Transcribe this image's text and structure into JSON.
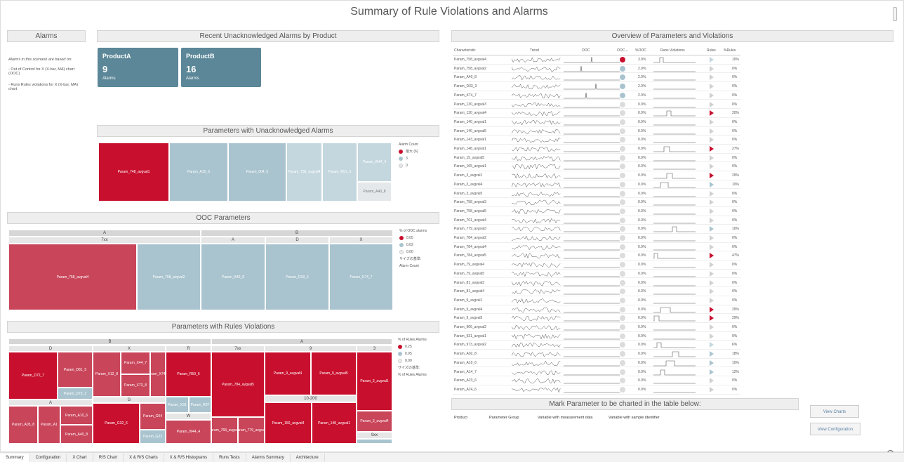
{
  "title": "Summary of Rule Violations and Alarms",
  "alarms": {
    "header": "Alarms",
    "intro": "Alarms in this scenario are based on:",
    "item1": "- Out of Control for X (X-bar, MA) chart (OOC)",
    "item2": "- Runs Rules violations for X (X-bar, MA) chart"
  },
  "recent": {
    "header": "Recent Unacknowledged Alarms by Product",
    "cards": [
      {
        "name": "ProductA",
        "count": "9",
        "label": "Alarms"
      },
      {
        "name": "ProductB",
        "count": "16",
        "label": "Alarms"
      }
    ]
  },
  "unack": {
    "header": "Parameters with Unacknowledged Alarms",
    "cells": [
      "Param_748_avgval1",
      "Param_A15_6",
      "Param_004_5",
      "Param_758_avgval4",
      "Param_R51_5",
      "Param_W44_4",
      "Param_A40_8"
    ],
    "legend_title": "Alarm Count",
    "legend": [
      "最大 (6)",
      "3",
      "0"
    ]
  },
  "ooc": {
    "header": "OOC Parameters",
    "groups": [
      "A",
      "B"
    ],
    "sub": [
      "7xx",
      "A",
      "D",
      "X"
    ],
    "cells": [
      "Param_758_avgval4",
      "Param_758_avgval2",
      "Param_A40_8",
      "Param_D33_3",
      "Param_K74_7"
    ],
    "legend_title": "% of OOC alarms",
    "legend": [
      "0.05",
      "0.02",
      "0.00"
    ],
    "size_label": "サイズの基準:",
    "size_value": "Alarm Count"
  },
  "rules": {
    "header": "Parameters with Rules Violations",
    "groups": [
      "B",
      "A"
    ],
    "sub": [
      "D",
      "X",
      "R",
      "A",
      "G",
      "W",
      "7xx",
      "9",
      "3",
      "10-200",
      "9xx"
    ],
    "cells": [
      "Param_D72_7",
      "Param_D81_5",
      "Param_D73_2",
      "Param_X12_8",
      "Param_X44_7",
      "Param_X73_8",
      "Param_X74_2",
      "Param_R59_6",
      "Param_A05_8",
      "Param_A1",
      "Param_A10_6",
      "Param_A40_8",
      "Param_G32_6",
      "Param_G04",
      "Param_G32",
      "Param_X31",
      "Param_R07",
      "Param_W44_4",
      "Param_784_avgval5",
      "Param_768_avgval4",
      "Param_779_avgval3",
      "Param_9_avgval4",
      "Param_9_avgval5",
      "Param_3_avgval1",
      "Param_150_avgval4",
      "Param_148_avgval1",
      "Param_3_avgval4"
    ],
    "legend_title": "% of Rules Alarms",
    "legend": [
      "0.25",
      "0.05",
      "0.00"
    ],
    "size_label": "サイズの基準:",
    "size_value": "% of Rules Alarms"
  },
  "overview": {
    "header": "Overview of Parameters and Violations",
    "columns": [
      "Characteristic",
      "Trend",
      "OOC",
      "OOC",
      "%OOC",
      "Runs Violations",
      "Rules",
      "%Rules"
    ],
    "rows": [
      {
        "name": "Param_758_avgval4",
        "ooc": "3.9%",
        "rules": "10%",
        "dot": "#c8102e",
        "tri": "#c4d7de",
        "spike": "1"
      },
      {
        "name": "Param_758_avgval2",
        "ooc": "2.0%",
        "rules": "0%",
        "dot": "#a9c4cf",
        "tri": "#d0d0d0",
        "spike": "1"
      },
      {
        "name": "Param_A40_8",
        "ooc": "2.0%",
        "rules": "0%",
        "dot": "#a9c4cf",
        "tri": "#d0d0d0",
        "spike": "0"
      },
      {
        "name": "Param_D33_3",
        "ooc": "2.0%",
        "rules": "0%",
        "dot": "#a9c4cf",
        "tri": "#d0d0d0",
        "spike": "1"
      },
      {
        "name": "Param_K74_7",
        "ooc": "2.0%",
        "rules": "0%",
        "dot": "#a9c4cf",
        "tri": "#d0d0d0",
        "spike": "1"
      },
      {
        "name": "Param_130_avgval3",
        "ooc": "0.0%",
        "rules": "0%",
        "dot": "#dcdcdc",
        "tri": "#d0d0d0",
        "spike": "0"
      },
      {
        "name": "Param_130_avgval4",
        "ooc": "0.0%",
        "rules": "20%",
        "dot": "#dcdcdc",
        "tri": "#c8102e",
        "spike": "0"
      },
      {
        "name": "Param_140_avgval1",
        "ooc": "0.0%",
        "rules": "0%",
        "dot": "#dcdcdc",
        "tri": "#d0d0d0",
        "spike": "0"
      },
      {
        "name": "Param_140_avgval5",
        "ooc": "0.0%",
        "rules": "0%",
        "dot": "#dcdcdc",
        "tri": "#d0d0d0",
        "spike": "0"
      },
      {
        "name": "Param_143_avgval1",
        "ooc": "0.0%",
        "rules": "0%",
        "dot": "#dcdcdc",
        "tri": "#d0d0d0",
        "spike": "0"
      },
      {
        "name": "Param_148_avgval1",
        "ooc": "0.0%",
        "rules": "27%",
        "dot": "#dcdcdc",
        "tri": "#c8102e",
        "spike": "0"
      },
      {
        "name": "Param_15_avgval5",
        "ooc": "0.0%",
        "rules": "0%",
        "dot": "#dcdcdc",
        "tri": "#d0d0d0",
        "spike": "0"
      },
      {
        "name": "Param_165_avgval1",
        "ooc": "0.0%",
        "rules": "0%",
        "dot": "#dcdcdc",
        "tri": "#d0d0d0",
        "spike": "0"
      },
      {
        "name": "Param_3_avgval1",
        "ooc": "0.0%",
        "rules": "29%",
        "dot": "#dcdcdc",
        "tri": "#c8102e",
        "spike": "0"
      },
      {
        "name": "Param_3_avgval4",
        "ooc": "0.0%",
        "rules": "10%",
        "dot": "#dcdcdc",
        "tri": "#a9c4cf",
        "spike": "0"
      },
      {
        "name": "Param_3_avgval5",
        "ooc": "0.0%",
        "rules": "0%",
        "dot": "#dcdcdc",
        "tri": "#d0d0d0",
        "spike": "0"
      },
      {
        "name": "Param_758_avgval3",
        "ooc": "0.0%",
        "rules": "0%",
        "dot": "#dcdcdc",
        "tri": "#d0d0d0",
        "spike": "0"
      },
      {
        "name": "Param_758_avgval5",
        "ooc": "0.0%",
        "rules": "0%",
        "dot": "#dcdcdc",
        "tri": "#d0d0d0",
        "spike": "0"
      },
      {
        "name": "Param_761_avgval4",
        "ooc": "0.0%",
        "rules": "0%",
        "dot": "#dcdcdc",
        "tri": "#d0d0d0",
        "spike": "0"
      },
      {
        "name": "Param_779_avgval3",
        "ooc": "0.0%",
        "rules": "10%",
        "dot": "#dcdcdc",
        "tri": "#a9c4cf",
        "spike": "0"
      },
      {
        "name": "Param_784_avgval2",
        "ooc": "0.0%",
        "rules": "0%",
        "dot": "#dcdcdc",
        "tri": "#d0d0d0",
        "spike": "0"
      },
      {
        "name": "Param_784_avgval4",
        "ooc": "0.0%",
        "rules": "0%",
        "dot": "#dcdcdc",
        "tri": "#d0d0d0",
        "spike": "0"
      },
      {
        "name": "Param_784_avgval5",
        "ooc": "0.0%",
        "rules": "47%",
        "dot": "#dcdcdc",
        "tri": "#c8102e",
        "spike": "0"
      },
      {
        "name": "Param_79_avgval4",
        "ooc": "0.0%",
        "rules": "0%",
        "dot": "#dcdcdc",
        "tri": "#d0d0d0",
        "spike": "0"
      },
      {
        "name": "Param_79_avgval5",
        "ooc": "0.0%",
        "rules": "0%",
        "dot": "#dcdcdc",
        "tri": "#d0d0d0",
        "spike": "0"
      },
      {
        "name": "Param_81_avgval3",
        "ooc": "0.0%",
        "rules": "0%",
        "dot": "#dcdcdc",
        "tri": "#d0d0d0",
        "spike": "0"
      },
      {
        "name": "Param_81_avgval4",
        "ooc": "0.0%",
        "rules": "0%",
        "dot": "#dcdcdc",
        "tri": "#d0d0d0",
        "spike": "0"
      },
      {
        "name": "Param_9_avgval1",
        "ooc": "0.0%",
        "rules": "0%",
        "dot": "#dcdcdc",
        "tri": "#d0d0d0",
        "spike": "0"
      },
      {
        "name": "Param_9_avgval4",
        "ooc": "0.0%",
        "rules": "29%",
        "dot": "#dcdcdc",
        "tri": "#c8102e",
        "spike": "0"
      },
      {
        "name": "Param_9_avgval5",
        "ooc": "0.0%",
        "rules": "29%",
        "dot": "#dcdcdc",
        "tri": "#c8102e",
        "spike": "0"
      },
      {
        "name": "Param_906_avgval2",
        "ooc": "0.0%",
        "rules": "0%",
        "dot": "#dcdcdc",
        "tri": "#d0d0d0",
        "spike": "0"
      },
      {
        "name": "Param_931_avgval1",
        "ooc": "0.0%",
        "rules": "0%",
        "dot": "#dcdcdc",
        "tri": "#d0d0d0",
        "spike": "0"
      },
      {
        "name": "Param_973_avgval2",
        "ooc": "0.0%",
        "rules": "6%",
        "dot": "#dcdcdc",
        "tri": "#c4d7de",
        "spike": "0"
      },
      {
        "name": "Param_A02_8",
        "ooc": "0.0%",
        "rules": "18%",
        "dot": "#dcdcdc",
        "tri": "#a9c4cf",
        "spike": "0"
      },
      {
        "name": "Param_A10_6",
        "ooc": "0.0%",
        "rules": "10%",
        "dot": "#dcdcdc",
        "tri": "#a9c4cf",
        "spike": "0"
      },
      {
        "name": "Param_A14_7",
        "ooc": "0.0%",
        "rules": "12%",
        "dot": "#dcdcdc",
        "tri": "#a9c4cf",
        "spike": "0"
      },
      {
        "name": "Param_A23_6",
        "ooc": "0.0%",
        "rules": "0%",
        "dot": "#dcdcdc",
        "tri": "#d0d0d0",
        "spike": "0"
      },
      {
        "name": "Param_A24_6",
        "ooc": "0.0%",
        "rules": "0%",
        "dot": "#dcdcdc",
        "tri": "#d0d0d0",
        "spike": "0"
      }
    ]
  },
  "mark": {
    "header": "Mark Parameter to be charted in the table below:",
    "cols": [
      "Product",
      "Parameter Group",
      "Variable with measurement data",
      "Variable with sample identifier"
    ]
  },
  "buttons": {
    "charts": "View Charts",
    "config": "View Configuration"
  },
  "tabs": [
    "Summary",
    "Configuration",
    "X Chart",
    "R/S Chart",
    "X & R/S Charts",
    "X & R/S Histograms",
    "Runs Tests",
    "Alarms Summary",
    "Architecture"
  ]
}
